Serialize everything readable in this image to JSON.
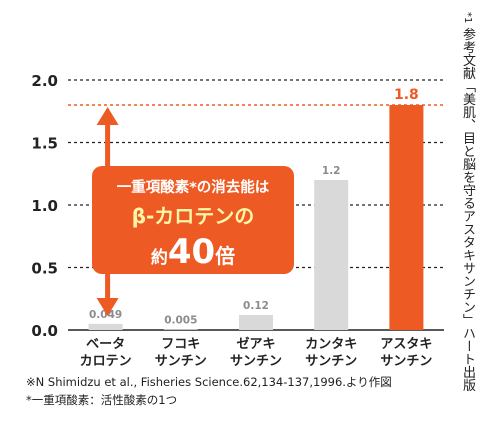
{
  "chart_data": {
    "type": "bar",
    "categories": [
      [
        "ベータ",
        "カロテン"
      ],
      [
        "フコキ",
        "サンチン"
      ],
      [
        "ゼアキ",
        "サンチン"
      ],
      [
        "カンタキ",
        "サンチン"
      ],
      [
        "アスタキ",
        "サンチン"
      ]
    ],
    "values": [
      0.049,
      0.005,
      0.12,
      1.2,
      1.8
    ],
    "value_labels": [
      "0.049",
      "0.005",
      "0.12",
      "1.2",
      "1.8"
    ],
    "highlight_index": 4,
    "ylim": [
      0,
      2.0
    ],
    "yticks": [
      "0.0",
      "0.5",
      "1.0",
      "1.5",
      "2.0"
    ],
    "grid": true,
    "reference_line": 1.8,
    "colors": {
      "bar": "#d9d9d9",
      "highlight": "#ee5a24",
      "callout": "#ee5a24",
      "reference": "#ee5a24",
      "label": "#8c8c8c"
    },
    "callout": {
      "line1": "一重項酸素*の消去能は",
      "line2": "β-カロテンの",
      "line3_prefix": "約",
      "line3_number": "40",
      "line3_suffix": "倍"
    }
  },
  "footnotes": {
    "source": "※N Shimidzu et al., Fisheries Science.62,134-137,1996.より作図",
    "definition": "*一重項酸素：活性酸素の1つ"
  },
  "sidenote": {
    "mark": "*1",
    "text": "参考文献「美肌、目と脳を守るアスタキサンチン」ハート出版"
  }
}
